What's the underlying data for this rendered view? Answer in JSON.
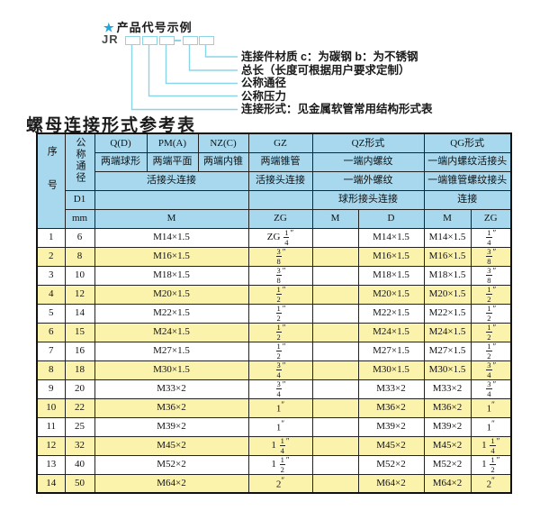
{
  "colors": {
    "accent_cyan": "#8bd5e8",
    "star_blue": "#24a6da",
    "header_blue": "#a7d8ee",
    "row_yellow": "#fbf2ac",
    "border": "#222222"
  },
  "diagram": {
    "star_icon": "★",
    "title": "产品代号示例",
    "prefix": "JR",
    "labels": [
      "连接件材质  c：为碳钢  b：为不锈钢",
      "总长（长度可根据用户要求定制）",
      "公称通径",
      "公称压力",
      "连接形式：见金属软管常用结构形式表"
    ]
  },
  "table": {
    "title": "螺母连接形式参考表",
    "header": {
      "seq": "序号",
      "dn": "公称通径",
      "d1": "D1",
      "mm": "mm",
      "codes": [
        "Q(D)",
        "PM(A)",
        "NZ(C)",
        "GZ",
        "QZ形式",
        "QG形式"
      ],
      "descs": [
        "两端球形",
        "两端平面",
        "两端内锥",
        "两端锥管",
        "一端内螺纹",
        "一端内螺纹活接头"
      ],
      "row3": [
        "活接头连接",
        "活接头连接",
        "一端外螺纹",
        "一端锥管螺纹接头"
      ],
      "row4": [
        "球形接头连接",
        "连接"
      ],
      "units": [
        "M",
        "ZG",
        "M",
        "D",
        "M",
        "ZG"
      ]
    },
    "rows": [
      {
        "no": "1",
        "dn": "6",
        "m": "M14×1.5",
        "zg": "ZG 1/4″",
        "qz_m": "",
        "qz_d": "M14×1.5",
        "qg_m": "M14×1.5",
        "qg_zg": "1/4″"
      },
      {
        "no": "2",
        "dn": "8",
        "m": "M16×1.5",
        "zg": "3/8″",
        "qz_m": "",
        "qz_d": "M16×1.5",
        "qg_m": "M16×1.5",
        "qg_zg": "3/8″"
      },
      {
        "no": "3",
        "dn": "10",
        "m": "M18×1.5",
        "zg": "3/8″",
        "qz_m": "",
        "qz_d": "M18×1.5",
        "qg_m": "M18×1.5",
        "qg_zg": "3/8″"
      },
      {
        "no": "4",
        "dn": "12",
        "m": "M20×1.5",
        "zg": "1/2″",
        "qz_m": "",
        "qz_d": "M20×1.5",
        "qg_m": "M20×1.5",
        "qg_zg": "1/2″"
      },
      {
        "no": "5",
        "dn": "14",
        "m": "M22×1.5",
        "zg": "1/2″",
        "qz_m": "",
        "qz_d": "M22×1.5",
        "qg_m": "M22×1.5",
        "qg_zg": "1/2″"
      },
      {
        "no": "6",
        "dn": "15",
        "m": "M24×1.5",
        "zg": "1/2″",
        "qz_m": "",
        "qz_d": "M24×1.5",
        "qg_m": "M24×1.5",
        "qg_zg": "1/2″"
      },
      {
        "no": "7",
        "dn": "16",
        "m": "M27×1.5",
        "zg": "1/2″",
        "qz_m": "",
        "qz_d": "M27×1.5",
        "qg_m": "M27×1.5",
        "qg_zg": "1/2″"
      },
      {
        "no": "8",
        "dn": "18",
        "m": "M30×1.5",
        "zg": "3/4″",
        "qz_m": "",
        "qz_d": "M30×1.5",
        "qg_m": "M30×1.5",
        "qg_zg": "3/4″"
      },
      {
        "no": "9",
        "dn": "20",
        "m": "M33×2",
        "zg": "3/4″",
        "qz_m": "",
        "qz_d": "M33×2",
        "qg_m": "M33×2",
        "qg_zg": "3/4″"
      },
      {
        "no": "10",
        "dn": "22",
        "m": "M36×2",
        "zg": "1″",
        "qz_m": "",
        "qz_d": "M36×2",
        "qg_m": "M36×2",
        "qg_zg": "1″"
      },
      {
        "no": "11",
        "dn": "25",
        "m": "M39×2",
        "zg": "1″",
        "qz_m": "",
        "qz_d": "M39×2",
        "qg_m": "M39×2",
        "qg_zg": "1″"
      },
      {
        "no": "12",
        "dn": "32",
        "m": "M45×2",
        "zg": "1 1/4″",
        "qz_m": "",
        "qz_d": "M45×2",
        "qg_m": "M45×2",
        "qg_zg": "1 1/4″"
      },
      {
        "no": "13",
        "dn": "40",
        "m": "M52×2",
        "zg": "1 1/2″",
        "qz_m": "",
        "qz_d": "M52×2",
        "qg_m": "M52×2",
        "qg_zg": "1 1/2″"
      },
      {
        "no": "14",
        "dn": "50",
        "m": "M64×2",
        "zg": "2″",
        "qz_m": "",
        "qz_d": "M64×2",
        "qg_m": "M64×2",
        "qg_zg": "2″"
      }
    ]
  }
}
